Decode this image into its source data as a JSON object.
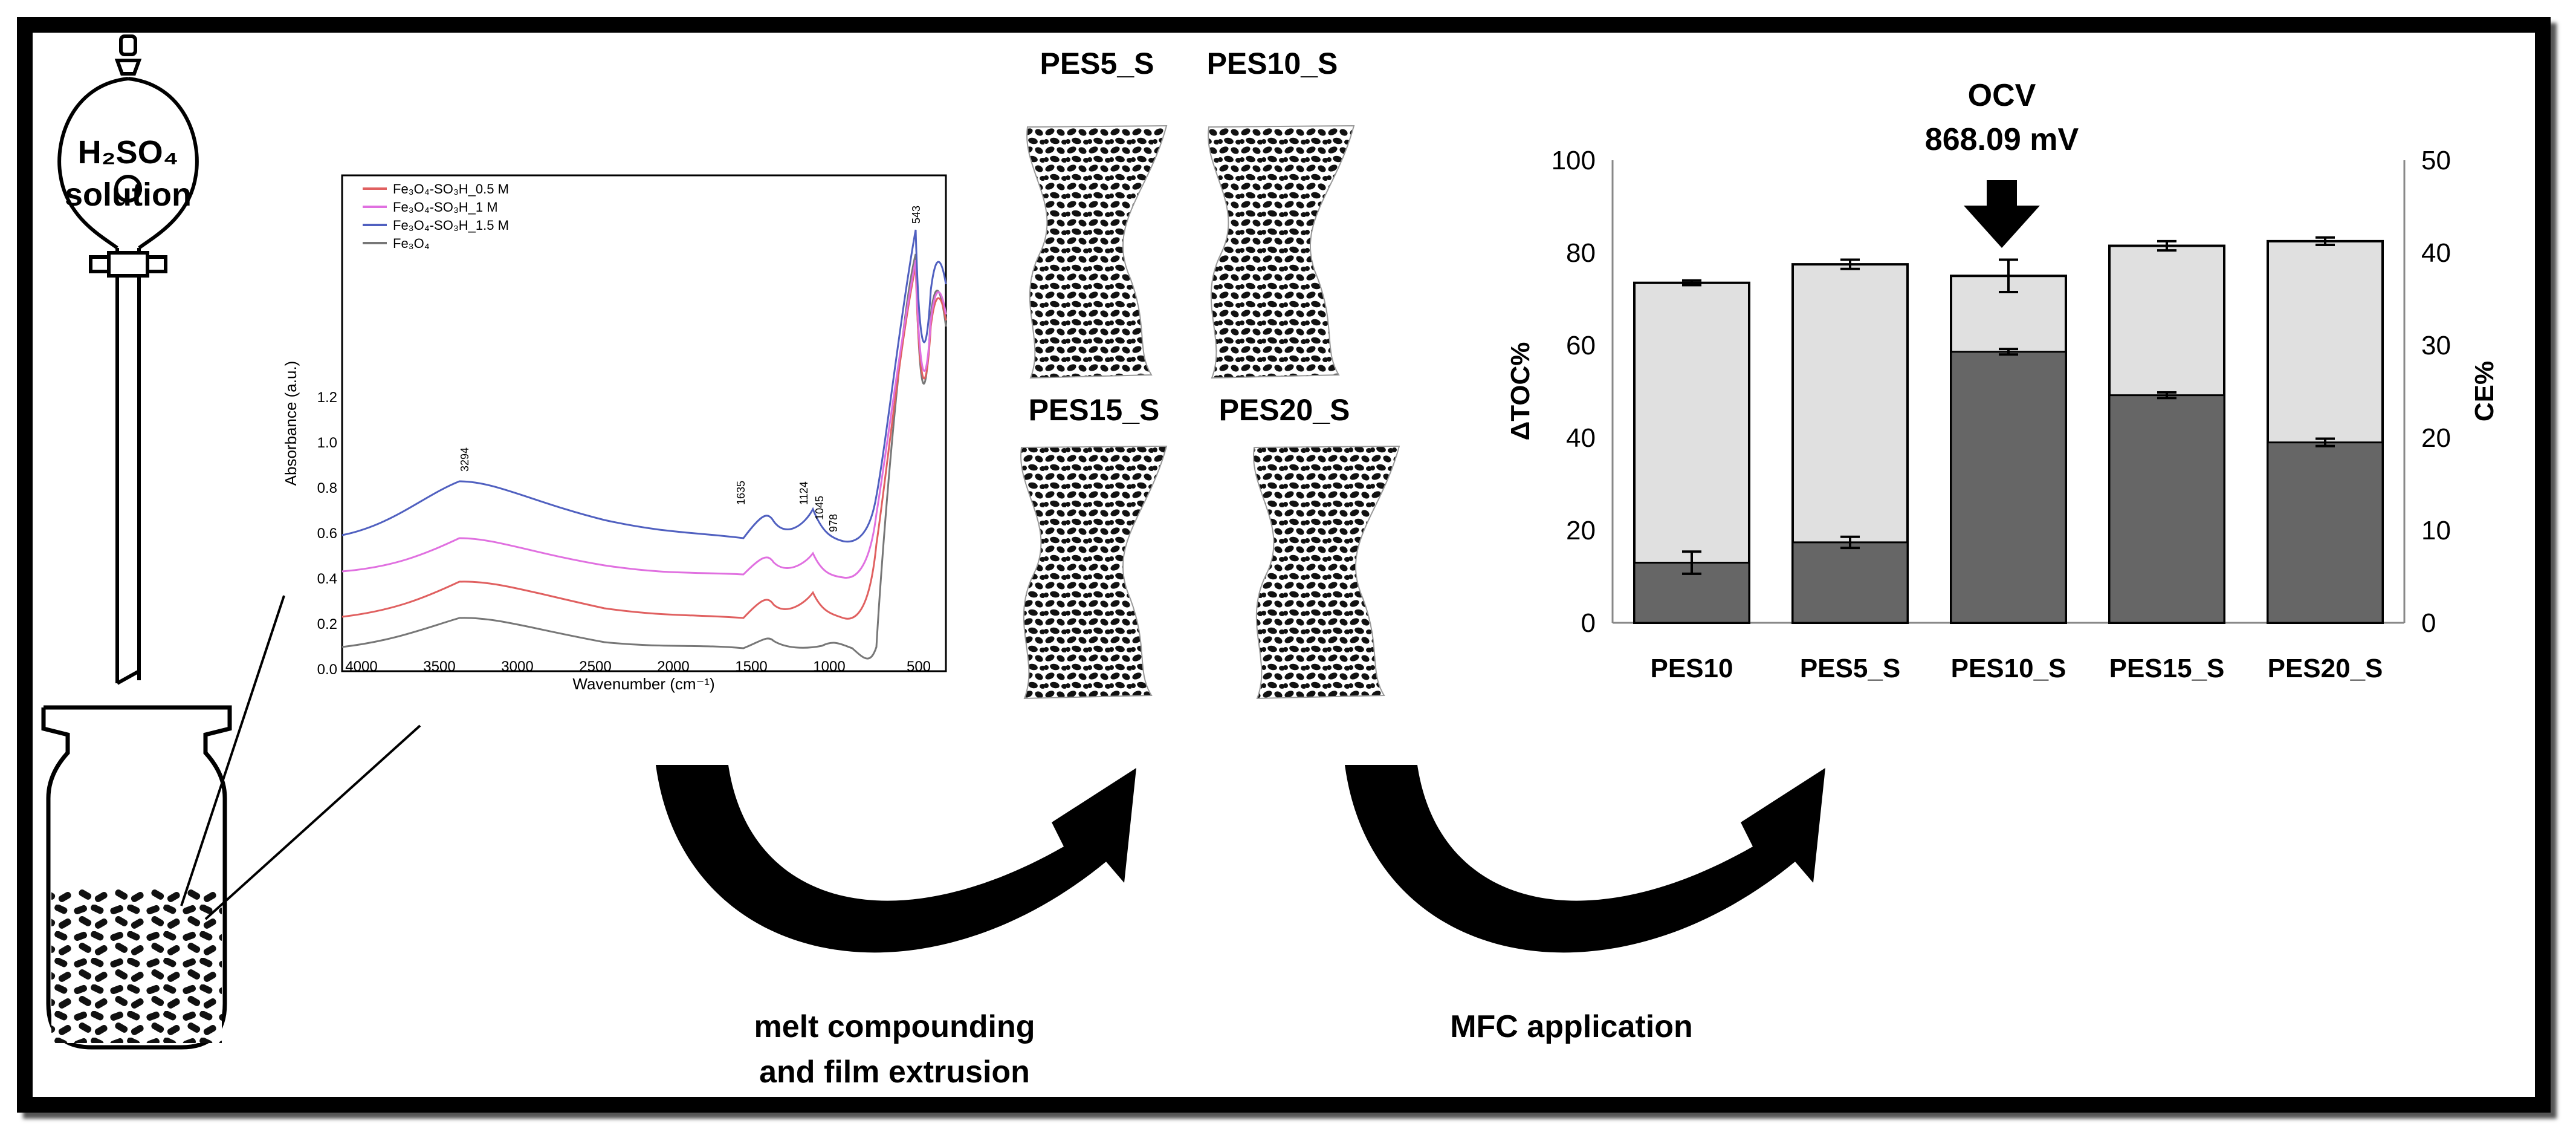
{
  "flask": {
    "label_line1": "H₂SO₄",
    "label_line2": "solution"
  },
  "ftir": {
    "ylabel": "Absorbance (a.u.)",
    "xlabel": "Wavenumber (cm⁻¹)",
    "xticks": [
      "4000",
      "3500",
      "3000",
      "2500",
      "2000",
      "1500",
      "1000",
      "500"
    ],
    "yticks": [
      "0.0",
      "0.2",
      "0.4",
      "0.6",
      "0.8",
      "1.0",
      "1.2"
    ],
    "legend": [
      "Fe₃O₄-SO₃H_0.5 M",
      "Fe₃O₄-SO₃H_1 M",
      "Fe₃O₄-SO₃H_1.5 M",
      "Fe₃O₄"
    ],
    "peaks": [
      "3294",
      "1635",
      "1124",
      "1045",
      "978",
      "543"
    ]
  },
  "films": {
    "labels": [
      "PES5_S",
      "PES10_S",
      "PES15_S",
      "PES20_S"
    ]
  },
  "process": {
    "step1_line1": "melt compounding",
    "step1_line2": "and film extrusion",
    "step2": "MFC application"
  },
  "ocv": {
    "title": "OCV",
    "value": "868.09 mV"
  },
  "chart_data": {
    "type": "bar",
    "categories": [
      "PES10",
      "PES5_S",
      "PES10_S",
      "PES15_S",
      "PES20_S"
    ],
    "series": [
      {
        "name": "ΔTOC%",
        "axis": "left",
        "values": [
          73.5,
          77.5,
          75.0,
          81.5,
          82.5
        ],
        "errors": [
          0.5,
          1.0,
          3.5,
          1.0,
          0.8
        ],
        "color": "#e0e0e0"
      },
      {
        "name": "CE%",
        "axis": "right",
        "values": [
          6.5,
          8.7,
          29.3,
          24.6,
          19.5
        ],
        "errors": [
          1.2,
          0.6,
          0.3,
          0.3,
          0.4
        ],
        "color": "#666666"
      }
    ],
    "ylabel": "ΔTOC%",
    "ylabel_right": "CE%",
    "ylim": [
      0,
      100
    ],
    "ylim_right": [
      0,
      50
    ],
    "yticks": [
      "0",
      "20",
      "40",
      "60",
      "80",
      "100"
    ],
    "yticks_right": [
      "0",
      "10",
      "20",
      "30",
      "40",
      "50"
    ]
  },
  "colors": {
    "frame": "#000000",
    "red": "#e06060",
    "magenta": "#e070e0",
    "blue": "#5060c0",
    "grey": "#777777"
  }
}
